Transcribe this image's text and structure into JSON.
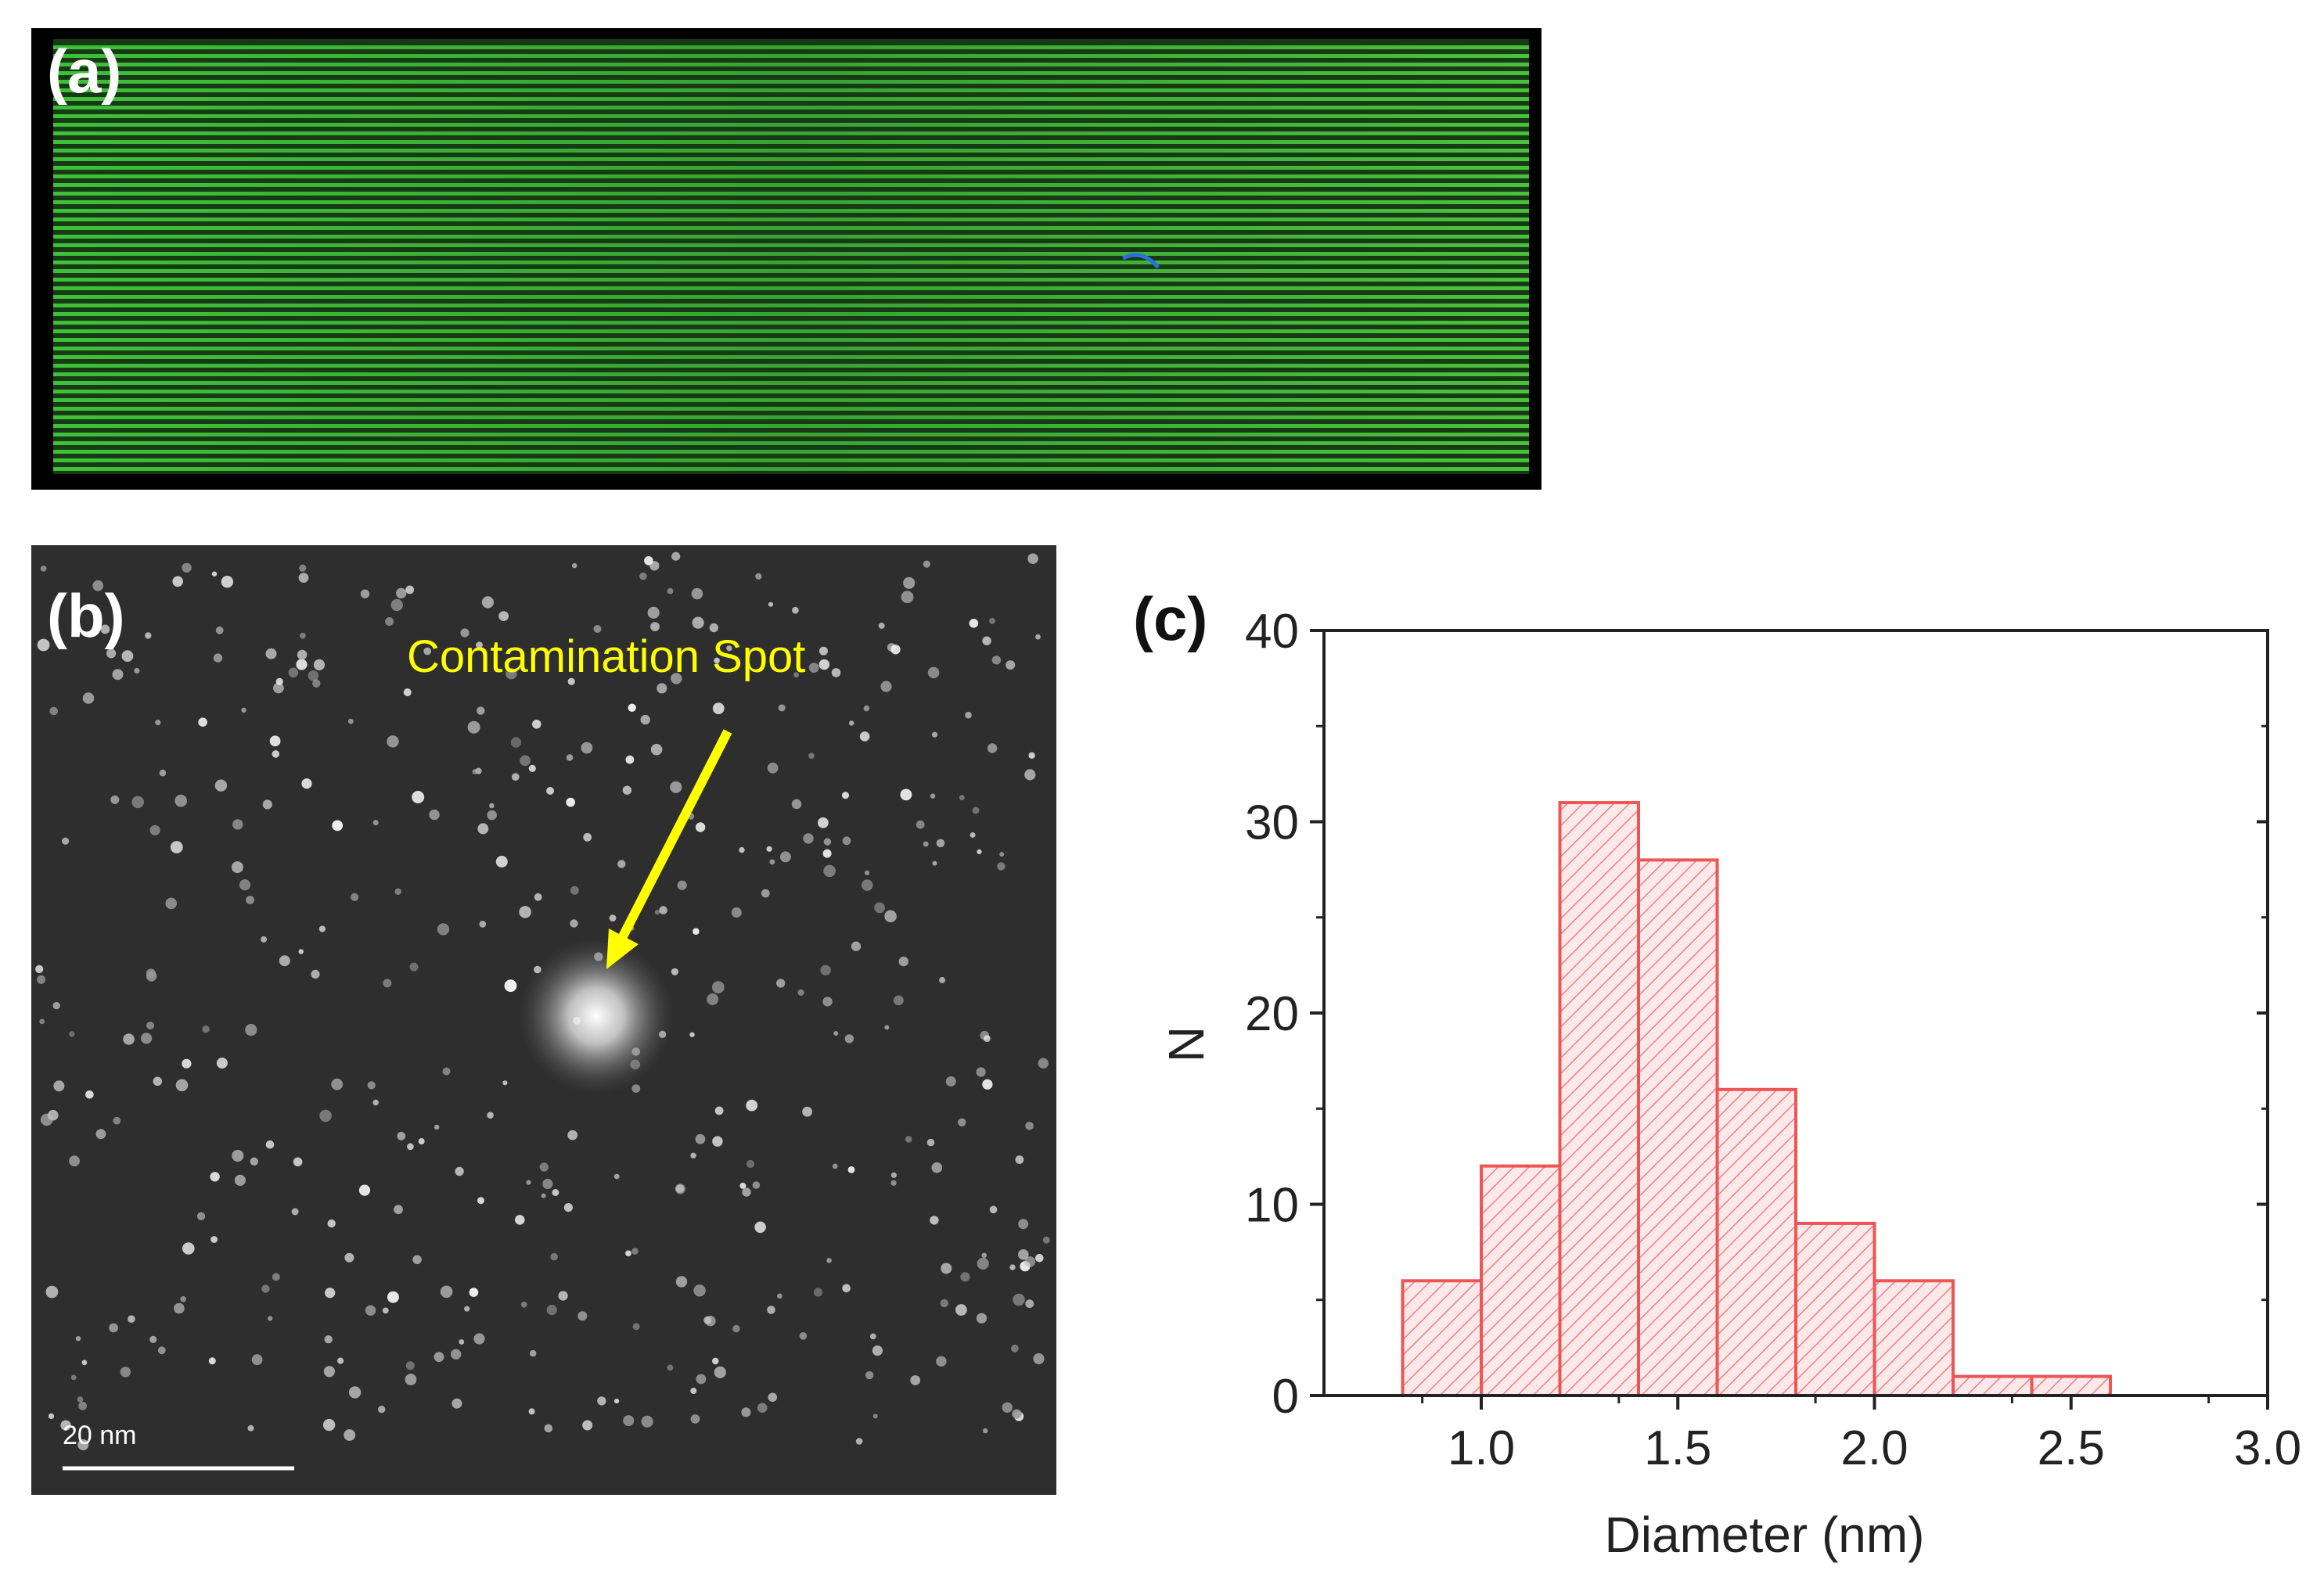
{
  "panels": {
    "a": {
      "label": "(a)"
    },
    "b": {
      "label": "(b)",
      "annotation": "Contamination Spot",
      "scale_bar": "20 nm",
      "annotation_color": "#ffff00"
    },
    "c": {
      "label": "(c)"
    }
  },
  "chart_data": {
    "type": "bar",
    "title": "",
    "xlabel": "Diameter (nm)",
    "ylabel": "N",
    "xlim": [
      0.6,
      3.0
    ],
    "ylim": [
      0,
      40
    ],
    "xticks": [
      "1.0",
      "1.5",
      "2.0",
      "2.5",
      "3.0"
    ],
    "xtick_values": [
      1.0,
      1.5,
      2.0,
      2.5,
      3.0
    ],
    "yticks": [
      "0",
      "10",
      "20",
      "30",
      "40"
    ],
    "ytick_values": [
      0,
      10,
      20,
      30,
      40
    ],
    "bin_width": 0.2,
    "bins": [
      {
        "start": 0.8,
        "end": 1.0,
        "count": 6
      },
      {
        "start": 1.0,
        "end": 1.2,
        "count": 12
      },
      {
        "start": 1.2,
        "end": 1.4,
        "count": 31
      },
      {
        "start": 1.4,
        "end": 1.6,
        "count": 28
      },
      {
        "start": 1.6,
        "end": 1.8,
        "count": 16
      },
      {
        "start": 1.8,
        "end": 2.0,
        "count": 9
      },
      {
        "start": 2.0,
        "end": 2.2,
        "count": 6
      },
      {
        "start": 2.2,
        "end": 2.4,
        "count": 1
      },
      {
        "start": 2.4,
        "end": 2.6,
        "count": 1
      }
    ],
    "bar_color": "#ee5555",
    "hatch": "diagonal",
    "grid": false
  }
}
